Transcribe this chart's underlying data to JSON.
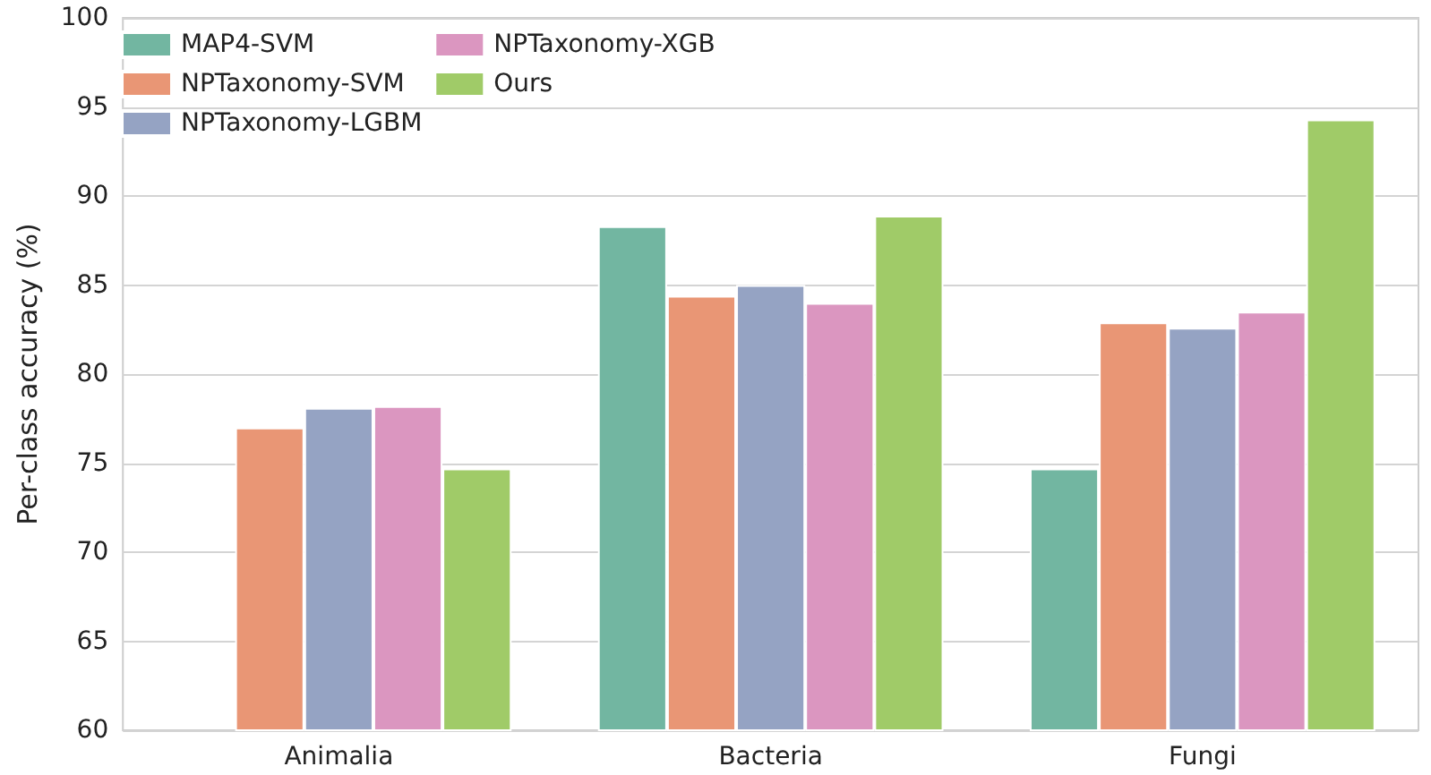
{
  "chart_data": {
    "type": "bar",
    "ylabel": "Per-class accuracy (%)",
    "categories": [
      "Animalia",
      "Bacteria",
      "Fungi"
    ],
    "series": [
      {
        "name": "MAP4-SVM",
        "color": "#72b6a1",
        "values": [
          null,
          88.3,
          74.7
        ]
      },
      {
        "name": "NPTaxonomy-SVM",
        "color": "#e99675",
        "values": [
          77.0,
          84.4,
          82.9
        ]
      },
      {
        "name": "NPTaxonomy-LGBM",
        "color": "#95a3c3",
        "values": [
          78.1,
          85.0,
          82.6
        ]
      },
      {
        "name": "NPTaxonomy-XGB",
        "color": "#db96c0",
        "values": [
          78.2,
          84.0,
          83.5
        ]
      },
      {
        "name": "Ours",
        "color": "#a0cb68",
        "values": [
          74.7,
          88.9,
          94.3
        ]
      }
    ],
    "ylim": [
      60,
      100
    ],
    "yticks": [
      60,
      65,
      70,
      75,
      80,
      85,
      90,
      95,
      100
    ],
    "grid": "y",
    "legend": "top left"
  }
}
